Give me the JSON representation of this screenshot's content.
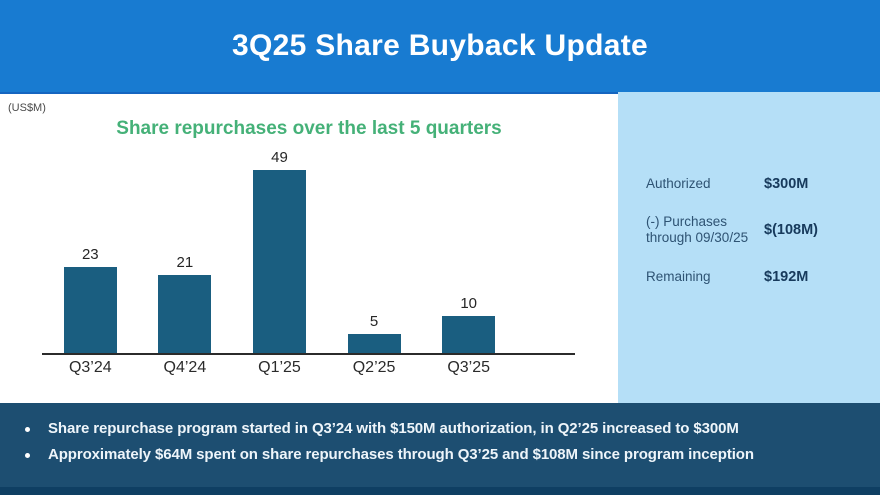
{
  "header": {
    "title": "3Q25 Share Buyback Update",
    "bg_color": "#187bd1"
  },
  "chart_section": {
    "units_label": "(US$M)"
  },
  "chart_data": {
    "type": "bar",
    "title": "Share repurchases over the last 5 quarters",
    "title_color": "#45b178",
    "categories": [
      "Q3’24",
      "Q4’24",
      "Q1’25",
      "Q2’25",
      "Q3’25"
    ],
    "values": [
      23,
      21,
      49,
      5,
      10
    ],
    "xlabel": "",
    "ylabel": "(US$M)",
    "ylim": [
      0,
      49
    ],
    "bar_color": "#1a5e80",
    "grid": false,
    "legend": false,
    "data_labels": true
  },
  "summary_panel": {
    "bg_color": "#b5dff7",
    "rows": [
      {
        "label": "Authorized",
        "value": "$300M"
      },
      {
        "label": "(-) Purchases through 09/30/25",
        "value": "$(108M)"
      },
      {
        "label": "Remaining",
        "value": "$192M"
      }
    ]
  },
  "footer": {
    "bg_color": "#1d4e71",
    "bullets": [
      "Share repurchase program started in Q3’24 with $150M authorization, in Q2’25 increased to $300M",
      "Approximately $64M spent on share repurchases through Q3’25 and $108M since program inception"
    ]
  }
}
